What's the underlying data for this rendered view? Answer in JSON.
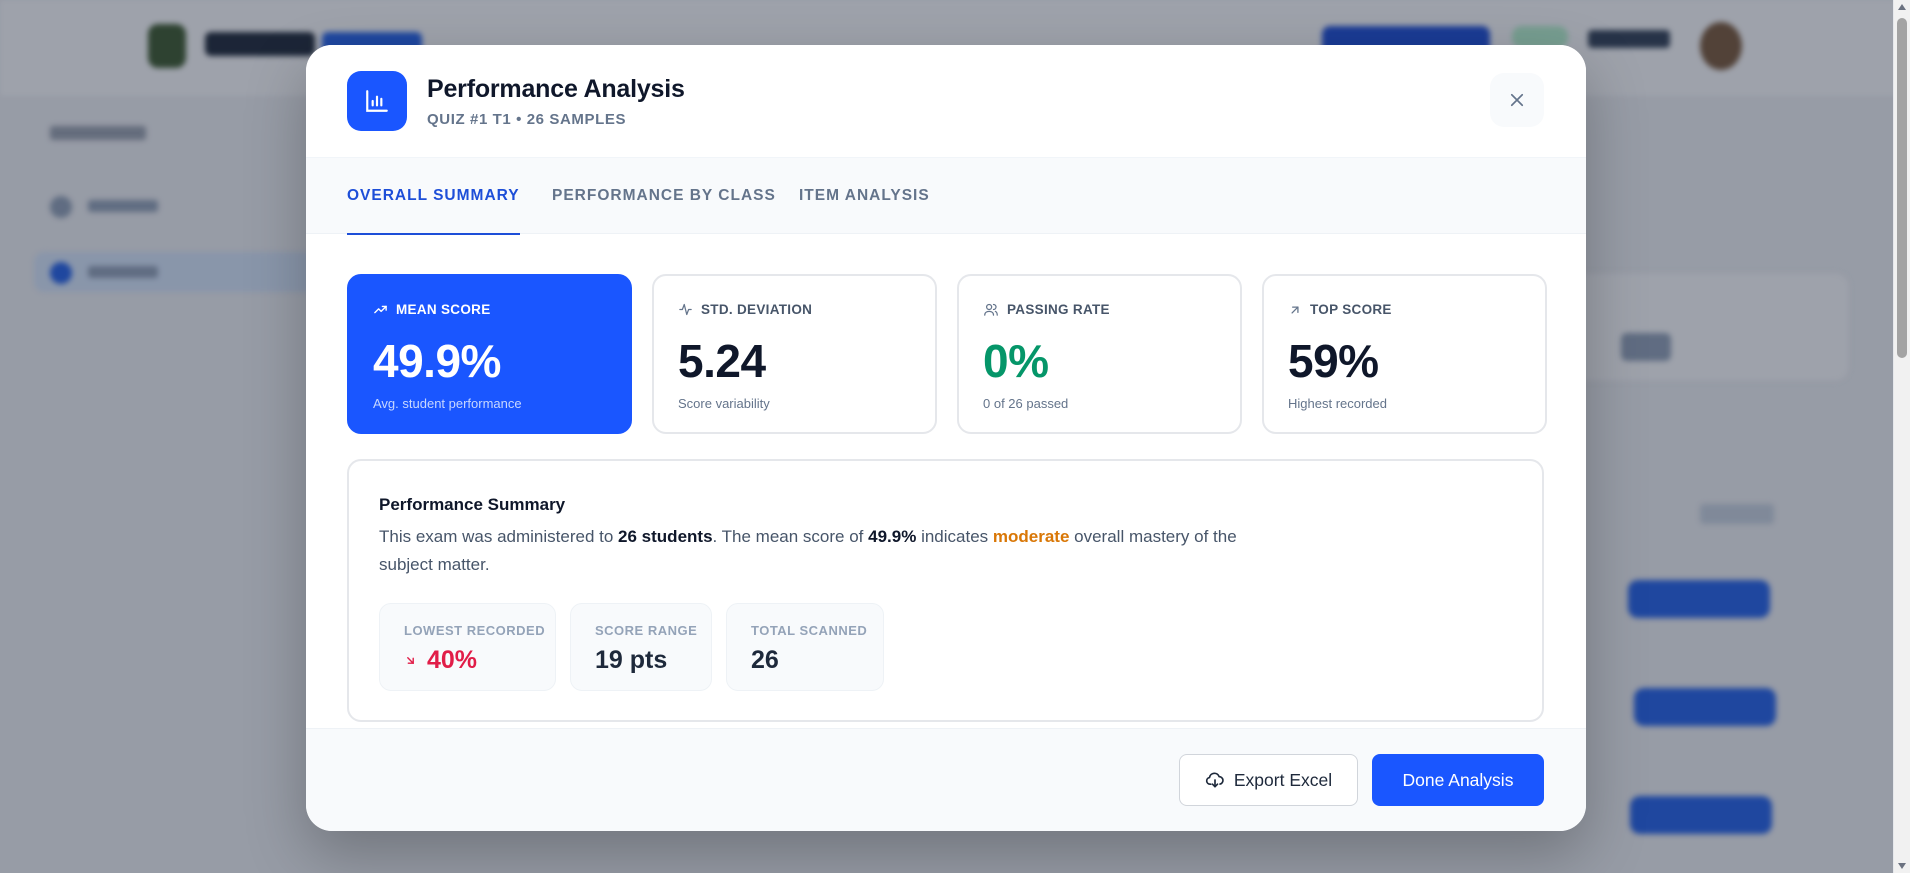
{
  "modal": {
    "title": "Performance Analysis",
    "subtitle": "QUIZ #1 T1 • 26 SAMPLES",
    "icon": "bar-chart-icon"
  },
  "tabs": [
    {
      "label": "OVERALL SUMMARY",
      "active": true
    },
    {
      "label": "PERFORMANCE BY CLASS",
      "active": false
    },
    {
      "label": "ITEM ANALYSIS",
      "active": false
    }
  ],
  "stats": [
    {
      "label": "MEAN SCORE",
      "value": "49.9%",
      "sub": "Avg. student performance",
      "icon": "trending-up-icon"
    },
    {
      "label": "STD. DEVIATION",
      "value": "5.24",
      "sub": "Score variability",
      "icon": "activity-icon"
    },
    {
      "label": "PASSING RATE",
      "value": "0%",
      "sub": "0 of 26 passed",
      "icon": "users-icon"
    },
    {
      "label": "TOP SCORE",
      "value": "59%",
      "sub": "Highest recorded",
      "icon": "arrow-up-right-icon"
    }
  ],
  "summary": {
    "title": "Performance Summary",
    "text_1": "This exam was administered to ",
    "students": "26 students",
    "text_2": ". The mean score of ",
    "mean": "49.9%",
    "text_3": " indicates ",
    "mastery": "moderate",
    "text_4": " overall mastery of the subject matter.",
    "metrics": [
      {
        "label": "LOWEST RECORDED",
        "value": "40%",
        "icon": "arrow-down-right-icon"
      },
      {
        "label": "SCORE RANGE",
        "value": "19 pts"
      },
      {
        "label": "TOTAL SCANNED",
        "value": "26"
      }
    ]
  },
  "footer": {
    "export_label": "Export Excel",
    "done_label": "Done Analysis"
  },
  "colors": {
    "accent": "#1a56ff",
    "success": "#059669",
    "warning": "#d97706",
    "danger": "#e11d48"
  }
}
